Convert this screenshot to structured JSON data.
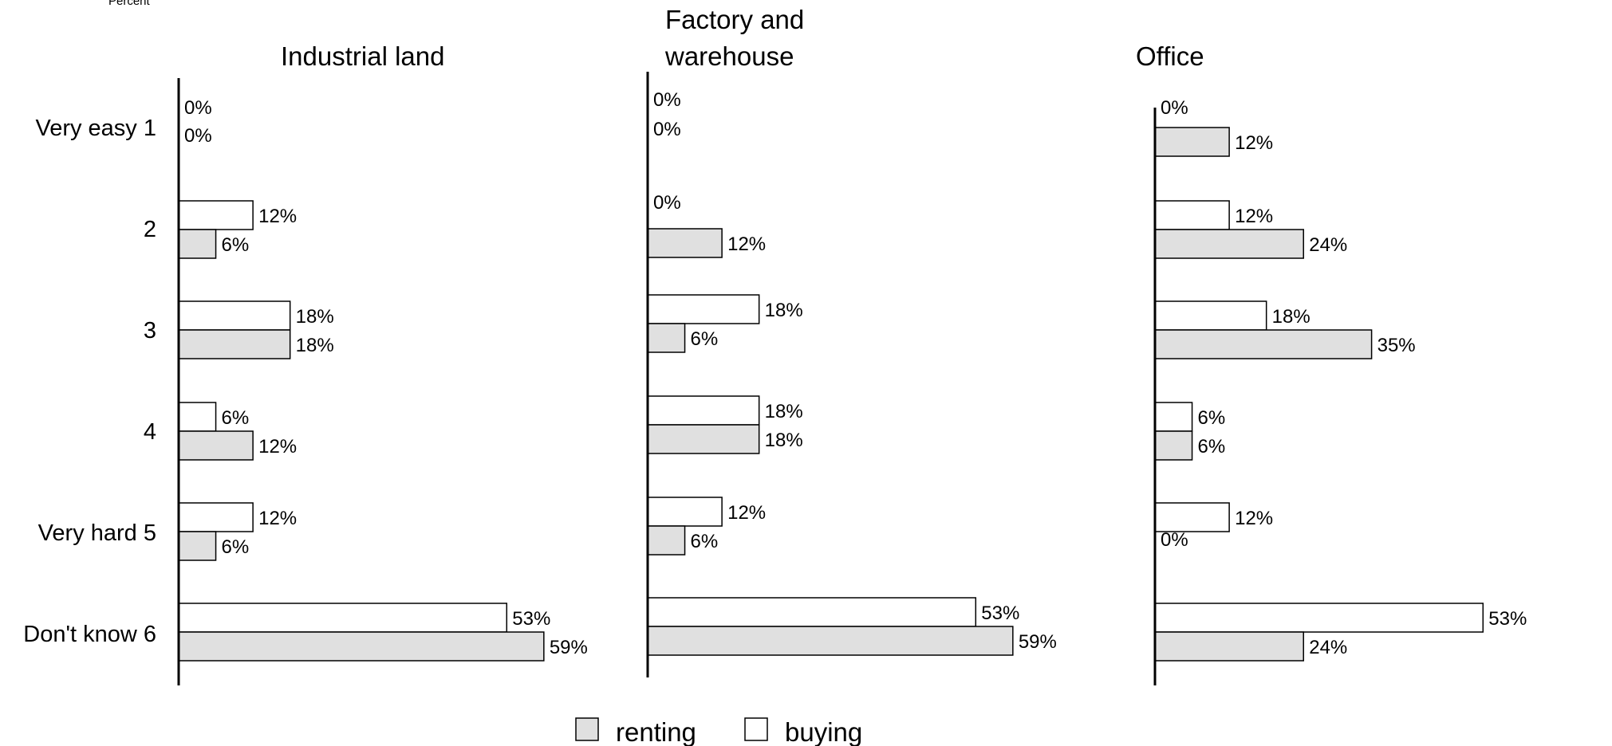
{
  "chart_data": {
    "type": "bar",
    "orientation": "horizontal",
    "unit": "Percent",
    "categories": [
      "Very easy  1",
      "2",
      "3",
      "4",
      "Very hard  5",
      "Don't know  6"
    ],
    "legend": [
      {
        "name": "renting",
        "color": "#e0e0e0"
      },
      {
        "name": "buying",
        "color": "#ffffff"
      }
    ],
    "legend_position": "bottom-center",
    "panels": [
      {
        "title": [
          "Industrial land"
        ],
        "series": [
          {
            "name": "buying",
            "values": [
              0,
              12,
              18,
              6,
              12,
              53
            ]
          },
          {
            "name": "renting",
            "values": [
              0,
              6,
              18,
              12,
              6,
              59
            ]
          }
        ]
      },
      {
        "title": [
          "Factory and",
          "warehouse"
        ],
        "series": [
          {
            "name": "buying",
            "values": [
              0,
              0,
              18,
              18,
              12,
              53
            ]
          },
          {
            "name": "renting",
            "values": [
              0,
              12,
              6,
              18,
              6,
              59
            ]
          }
        ]
      },
      {
        "title": [
          "Office"
        ],
        "series": [
          {
            "name": "buying",
            "values": [
              0,
              12,
              18,
              6,
              12,
              53
            ]
          },
          {
            "name": "renting",
            "values": [
              12,
              24,
              35,
              6,
              0,
              24
            ]
          }
        ]
      }
    ],
    "colors": {
      "renting": "#e0e0e0",
      "buying": "#ffffff",
      "outline": "#000000"
    }
  }
}
